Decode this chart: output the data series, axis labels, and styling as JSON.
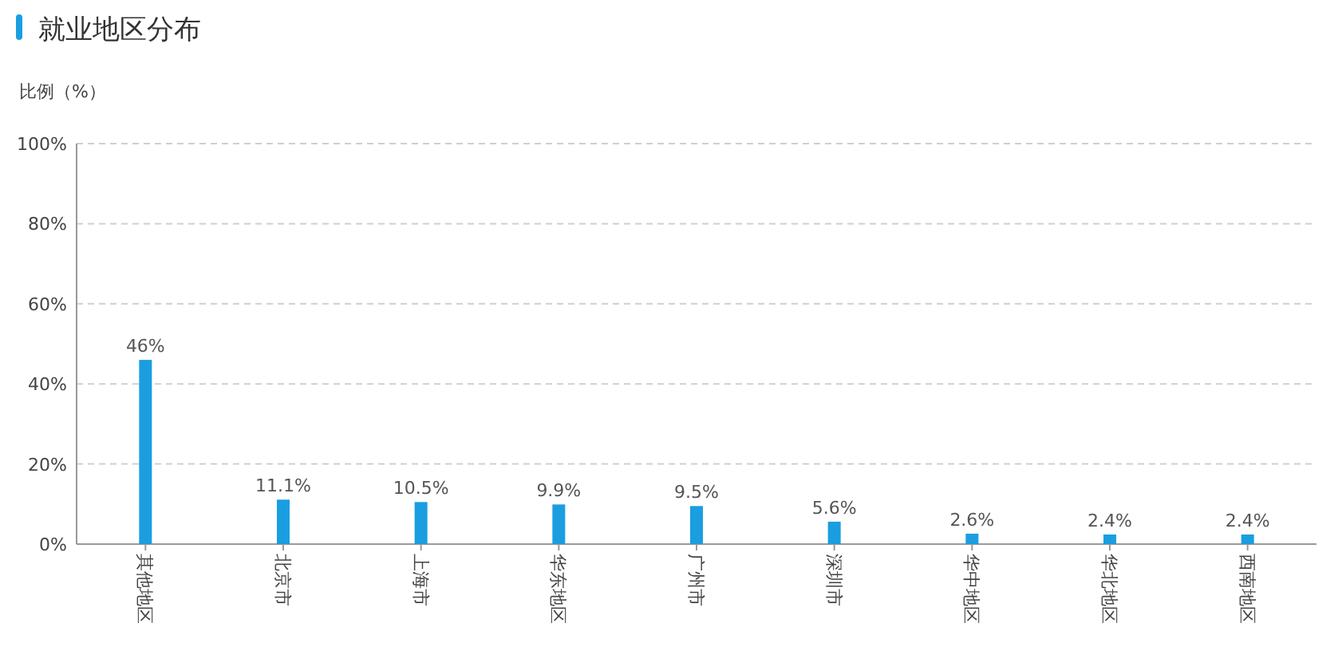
{
  "chart_data": {
    "type": "bar",
    "title": "就业地区分布",
    "ylabel": "比例（%）",
    "categories": [
      "其他地区",
      "北京市",
      "上海市",
      "华东地区",
      "广州市",
      "深圳市",
      "华中地区",
      "华北地区",
      "西南地区"
    ],
    "values": [
      46,
      11.1,
      10.5,
      9.9,
      9.5,
      5.6,
      2.6,
      2.4,
      2.4
    ],
    "value_labels": [
      "46%",
      "11.1%",
      "10.5%",
      "9.9%",
      "9.5%",
      "5.6%",
      "2.6%",
      "2.4%",
      "2.4%"
    ],
    "color": "#1a9ee0",
    "ylim": [
      0,
      100
    ],
    "yticks": [
      {
        "value": 0,
        "label": "0%"
      },
      {
        "value": 20,
        "label": "20%"
      },
      {
        "value": 40,
        "label": "40%"
      },
      {
        "value": 60,
        "label": "60%"
      },
      {
        "value": 80,
        "label": "80%"
      },
      {
        "value": 100,
        "label": "100%"
      }
    ],
    "grid": "y"
  }
}
